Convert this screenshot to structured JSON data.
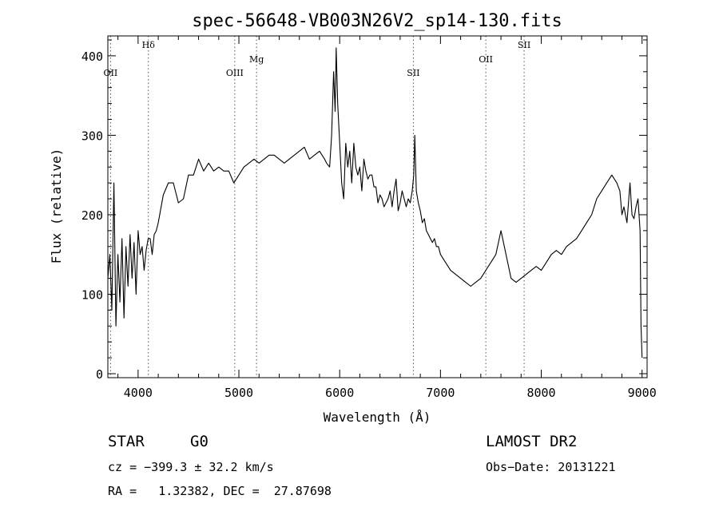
{
  "chart_data": {
    "type": "line",
    "title": "spec-56648-VB003N26V2_sp14-130.fits",
    "xlabel": "Wavelength (Å)",
    "ylabel": "Flux (relative)",
    "xlim": [
      3700,
      9050
    ],
    "ylim": [
      -5,
      425
    ],
    "xticks": [
      4000,
      5000,
      6000,
      7000,
      8000,
      9000
    ],
    "yticks": [
      0,
      100,
      200,
      300,
      400
    ],
    "grid": false,
    "line_color": "#000000",
    "marker_color": "#555555",
    "line_markers": [
      {
        "label": "OII",
        "wavelength": 3727
      },
      {
        "label": "Hδ",
        "wavelength": 4102
      },
      {
        "label": "OIII",
        "wavelength": 4959
      },
      {
        "label": "Mg",
        "wavelength": 5175
      },
      {
        "label": "SII",
        "wavelength": 6731
      },
      {
        "label": "OII",
        "wavelength": 7450
      },
      {
        "label": "SII",
        "wavelength": 7830
      }
    ],
    "series": [
      {
        "x": [
          3700,
          3720,
          3740,
          3760,
          3780,
          3800,
          3820,
          3840,
          3860,
          3880,
          3900,
          3920,
          3940,
          3960,
          3980,
          4000,
          4020,
          4040,
          4060,
          4080,
          4100,
          4120,
          4140,
          4160,
          4180,
          4200,
          4250,
          4300,
          4350,
          4400,
          4450,
          4500,
          4550,
          4600,
          4650,
          4700,
          4750,
          4800,
          4850,
          4900,
          4950,
          5000,
          5050,
          5100,
          5150,
          5200,
          5250,
          5300,
          5350,
          5400,
          5450,
          5500,
          5550,
          5600,
          5650,
          5700,
          5750,
          5800,
          5850,
          5870,
          5900,
          5920,
          5940,
          5955,
          5965,
          5980,
          6000,
          6020,
          6040,
          6060,
          6080,
          6100,
          6120,
          6140,
          6160,
          6180,
          6200,
          6220,
          6240,
          6260,
          6280,
          6300,
          6320,
          6340,
          6360,
          6380,
          6400,
          6420,
          6440,
          6460,
          6480,
          6500,
          6520,
          6540,
          6560,
          6580,
          6600,
          6620,
          6640,
          6660,
          6680,
          6700,
          6720,
          6735,
          6745,
          6760,
          6780,
          6800,
          6820,
          6840,
          6860,
          6880,
          6900,
          6920,
          6940,
          6960,
          6980,
          7000,
          7050,
          7100,
          7150,
          7200,
          7250,
          7300,
          7350,
          7400,
          7450,
          7500,
          7550,
          7600,
          7650,
          7700,
          7750,
          7800,
          7850,
          7900,
          7950,
          8000,
          8050,
          8100,
          8150,
          8200,
          8250,
          8300,
          8350,
          8400,
          8450,
          8500,
          8550,
          8600,
          8650,
          8700,
          8750,
          8780,
          8800,
          8820,
          8850,
          8880,
          8900,
          8920,
          8940,
          8960,
          8980,
          8990,
          9000
        ],
        "y": [
          120,
          150,
          80,
          240,
          60,
          150,
          90,
          170,
          70,
          160,
          110,
          175,
          120,
          165,
          100,
          180,
          150,
          160,
          130,
          155,
          170,
          170,
          150,
          175,
          180,
          190,
          225,
          240,
          240,
          215,
          220,
          250,
          250,
          270,
          255,
          265,
          255,
          260,
          255,
          255,
          240,
          250,
          260,
          265,
          270,
          265,
          270,
          275,
          275,
          270,
          265,
          270,
          275,
          280,
          285,
          270,
          275,
          280,
          270,
          265,
          260,
          300,
          380,
          330,
          410,
          340,
          290,
          240,
          220,
          290,
          260,
          280,
          240,
          290,
          260,
          250,
          260,
          230,
          270,
          255,
          245,
          250,
          250,
          235,
          235,
          215,
          225,
          220,
          210,
          215,
          220,
          230,
          210,
          230,
          245,
          205,
          215,
          230,
          220,
          210,
          220,
          215,
          230,
          250,
          300,
          230,
          215,
          205,
          190,
          195,
          180,
          175,
          170,
          165,
          170,
          160,
          160,
          150,
          140,
          130,
          125,
          120,
          115,
          110,
          115,
          120,
          130,
          140,
          150,
          180,
          150,
          120,
          115,
          120,
          125,
          130,
          135,
          130,
          140,
          150,
          155,
          150,
          160,
          165,
          170,
          180,
          190,
          200,
          220,
          230,
          240,
          250,
          240,
          230,
          200,
          210,
          190,
          240,
          200,
          195,
          210,
          220,
          180,
          60,
          20
        ]
      }
    ]
  },
  "footer": {
    "object_type": "STAR",
    "subclass": "G0",
    "survey": "LAMOST DR2",
    "cz": "cz = −399.3 ± 32.2 km/s",
    "obs_date": "Obs−Date: 20131221",
    "coords": "RA =   1.32382, DEC =  27.87698"
  }
}
